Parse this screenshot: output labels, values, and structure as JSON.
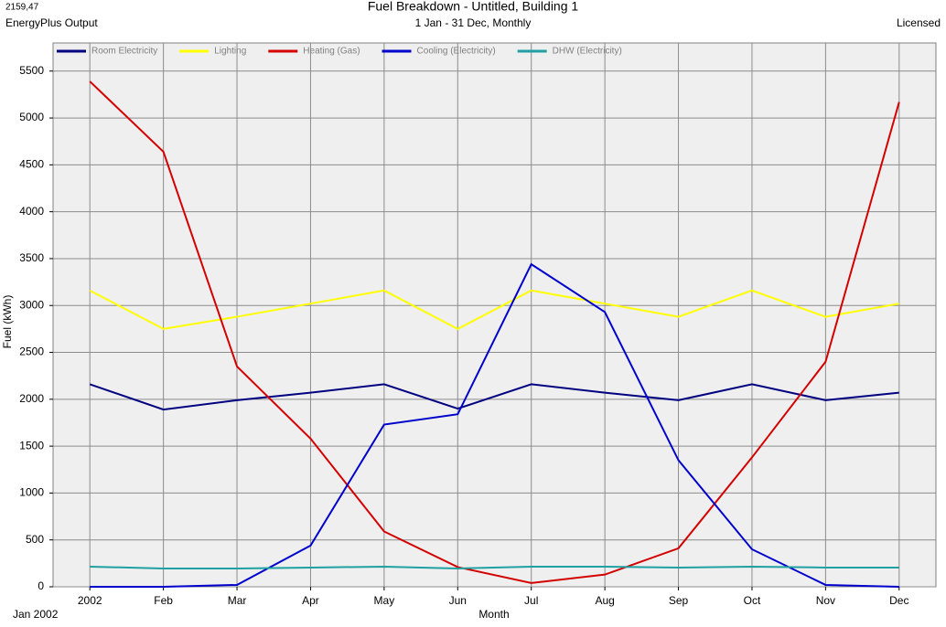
{
  "chart_data": {
    "type": "line",
    "title": "Fuel Breakdown - Untitled, Building 1",
    "subtitle": "1 Jan - 31 Dec, Monthly",
    "cursor_value": "2159,47",
    "source": "EnergyPlus Output",
    "license": "Licensed",
    "start_label": "Jan 2002",
    "xlabel": "Month",
    "ylabel": "Fuel (kWh)",
    "categories": [
      "2002",
      "Feb",
      "Mar",
      "Apr",
      "May",
      "Jun",
      "Jul",
      "Aug",
      "Sep",
      "Oct",
      "Nov",
      "Dec"
    ],
    "series": [
      {
        "name": "Room Electricity",
        "color": "#000080",
        "values": [
          2160,
          1890,
          1990,
          2070,
          2160,
          1900,
          2160,
          2070,
          1990,
          2160,
          1990,
          2070
        ]
      },
      {
        "name": "Lighting",
        "color": "#ffff00",
        "values": [
          3160,
          2750,
          2880,
          3020,
          3160,
          2750,
          3160,
          3020,
          2880,
          3160,
          2880,
          3020
        ]
      },
      {
        "name": "Heating (Gas)",
        "color": "#d40000",
        "values": [
          5390,
          4640,
          2350,
          1580,
          590,
          210,
          40,
          130,
          410,
          1380,
          2400,
          5170
        ]
      },
      {
        "name": "Cooling (Electricity)",
        "color": "#0000cd",
        "values": [
          0,
          0,
          20,
          440,
          1730,
          1840,
          3440,
          2930,
          1350,
          400,
          20,
          0
        ]
      },
      {
        "name": "DHW (Electricity)",
        "color": "#20a0a0",
        "values": [
          215,
          195,
          195,
          205,
          215,
          195,
          215,
          215,
          205,
          215,
          205,
          205
        ]
      }
    ],
    "ylim": [
      0,
      5800
    ],
    "yticks": [
      0,
      500,
      1000,
      1500,
      2000,
      2500,
      3000,
      3500,
      4000,
      4500,
      5000,
      5500
    ],
    "grid": true,
    "legend_position": "top"
  }
}
